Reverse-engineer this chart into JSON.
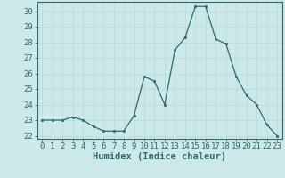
{
  "x": [
    0,
    1,
    2,
    3,
    4,
    5,
    6,
    7,
    8,
    9,
    10,
    11,
    12,
    13,
    14,
    15,
    16,
    17,
    18,
    19,
    20,
    21,
    22,
    23
  ],
  "y": [
    23.0,
    23.0,
    23.0,
    23.2,
    23.0,
    22.6,
    22.3,
    22.3,
    22.3,
    23.3,
    25.8,
    25.5,
    24.0,
    27.5,
    28.3,
    30.3,
    30.3,
    28.2,
    27.9,
    25.8,
    24.6,
    24.0,
    22.7,
    22.0
  ],
  "bg_color": "#cce8e8",
  "line_color": "#2d6b6b",
  "marker_color": "#2d6b6b",
  "grid_color": "#b8d8d8",
  "xlabel": "Humidex (Indice chaleur)",
  "xlim": [
    -0.5,
    23.5
  ],
  "ylim": [
    21.8,
    30.6
  ],
  "yticks": [
    22,
    23,
    24,
    25,
    26,
    27,
    28,
    29,
    30
  ],
  "xticks": [
    0,
    1,
    2,
    3,
    4,
    5,
    6,
    7,
    8,
    9,
    10,
    11,
    12,
    13,
    14,
    15,
    16,
    17,
    18,
    19,
    20,
    21,
    22,
    23
  ],
  "label_color": "#2d6b6b",
  "tick_color": "#2d6b6b",
  "axis_color": "#2d6b6b",
  "font_size_label": 7.5,
  "font_size_tick": 6.5
}
